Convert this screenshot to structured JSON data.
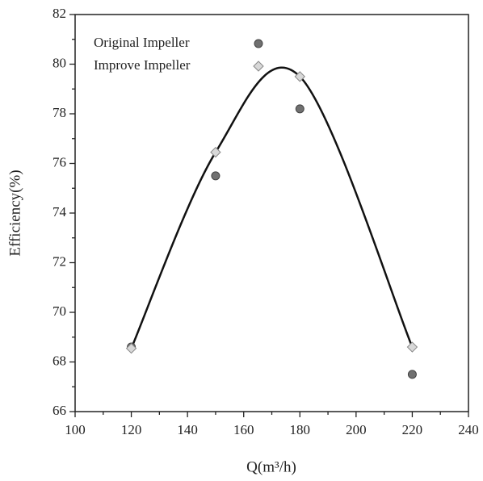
{
  "chart_data": {
    "type": "scatter",
    "xlabel": "Q(m³/h)",
    "ylabel": "Efficiency(%)",
    "x": [
      120,
      150,
      180,
      220
    ],
    "series": [
      {
        "name": "Original Impeller",
        "color": "#707070",
        "marker": "circle",
        "values": [
          68.6,
          75.5,
          78.2,
          67.5
        ]
      },
      {
        "name": "Improve Impeller",
        "color": "#d8d8d8",
        "marker": "diamond",
        "values": [
          68.55,
          76.45,
          79.5,
          68.6
        ]
      }
    ],
    "xlim": [
      100,
      240
    ],
    "xticks": [
      100,
      120,
      140,
      160,
      180,
      200,
      220,
      240
    ],
    "ylim": [
      66,
      82
    ],
    "yticks": [
      66,
      68,
      70,
      72,
      74,
      76,
      78,
      80,
      82
    ],
    "grid": false
  }
}
